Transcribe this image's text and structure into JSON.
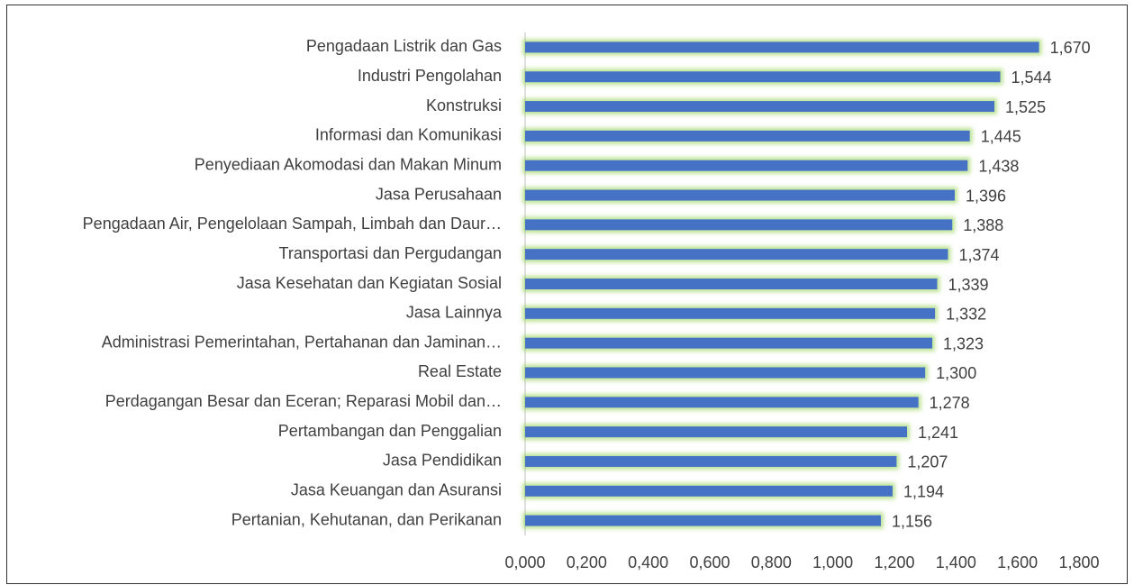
{
  "chart_data": {
    "type": "bar",
    "orientation": "horizontal",
    "color": "#4472c4",
    "glow_color": "#92d050",
    "categories": [
      "Pengadaan Listrik dan Gas",
      "Industri Pengolahan",
      "Konstruksi",
      "Informasi dan Komunikasi",
      "Penyediaan Akomodasi dan Makan Minum",
      "Jasa Perusahaan",
      "Pengadaan Air, Pengelolaan Sampah, Limbah dan Daur…",
      "Transportasi dan Pergudangan",
      "Jasa Kesehatan dan Kegiatan Sosial",
      "Jasa Lainnya",
      "Administrasi Pemerintahan, Pertahanan dan Jaminan…",
      "Real Estate",
      "Perdagangan Besar dan Eceran; Reparasi Mobil dan…",
      "Pertambangan dan Penggalian",
      "Jasa Pendidikan",
      "Jasa Keuangan dan Asuransi",
      "Pertanian, Kehutanan, dan Perikanan"
    ],
    "values": [
      1.67,
      1.544,
      1.525,
      1.445,
      1.438,
      1.396,
      1.388,
      1.374,
      1.339,
      1.332,
      1.323,
      1.3,
      1.278,
      1.241,
      1.207,
      1.194,
      1.156
    ],
    "value_labels": [
      "1,670",
      "1,544",
      "1,525",
      "1,445",
      "1,438",
      "1,396",
      "1,388",
      "1,374",
      "1,339",
      "1,332",
      "1,323",
      "1,300",
      "1,278",
      "1,241",
      "1,207",
      "1,194",
      "1,156"
    ],
    "xlim": [
      0,
      1.8
    ],
    "xticks": [
      {
        "value": 0,
        "label": "0,000"
      },
      {
        "value": 0.2,
        "label": "0,200"
      },
      {
        "value": 0.4,
        "label": "0,400"
      },
      {
        "value": 0.6,
        "label": "0,600"
      },
      {
        "value": 0.8,
        "label": "0,800"
      },
      {
        "value": 1.0,
        "label": "1,000"
      },
      {
        "value": 1.2,
        "label": "1,200"
      },
      {
        "value": 1.4,
        "label": "1,400"
      },
      {
        "value": 1.6,
        "label": "1,600"
      },
      {
        "value": 1.8,
        "label": "1,800"
      }
    ],
    "grid": false
  }
}
